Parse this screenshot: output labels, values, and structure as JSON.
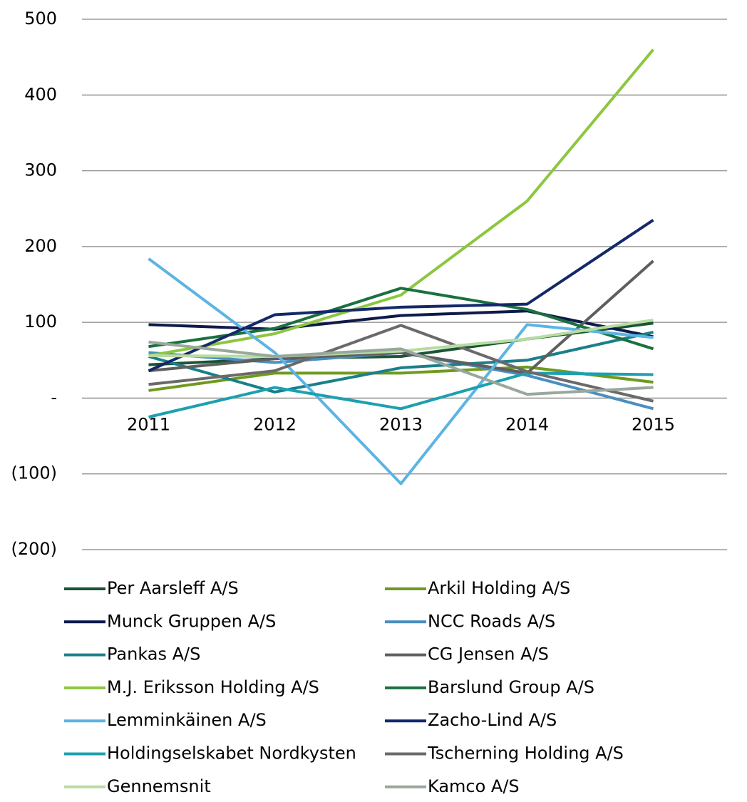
{
  "chart_data": {
    "type": "line",
    "categories": [
      "2011",
      "2012",
      "2013",
      "2014",
      "2015"
    ],
    "ylim": [
      -200,
      500
    ],
    "yticks": [
      {
        "value": -200,
        "label": "(200)"
      },
      {
        "value": -100,
        "label": "(100)"
      },
      {
        "value": 0,
        "label": "-"
      },
      100,
      200,
      300,
      400,
      500
    ],
    "grid": true,
    "legend": "bottom",
    "series": [
      {
        "name": "Per Aarsleff A/S",
        "color": "#1b5436",
        "values": [
          44,
          52,
          55,
          78,
          99
        ]
      },
      {
        "name": "Arkil Holding A/S",
        "color": "#6f9a1f",
        "values": [
          10,
          33,
          33,
          41,
          21
        ]
      },
      {
        "name": "Munck Gruppen A/S",
        "color": "#0e1a4a",
        "values": [
          97,
          91,
          109,
          115,
          81
        ]
      },
      {
        "name": "NCC Roads A/S",
        "color": "#4a8fc0",
        "values": [
          60,
          47,
          60,
          30,
          -14
        ]
      },
      {
        "name": "Pankas A/S",
        "color": "#1a7f8a",
        "values": [
          55,
          8,
          40,
          50,
          87
        ]
      },
      {
        "name": "CG Jensen A/S",
        "color": "#5f5f5f",
        "values": [
          36,
          52,
          60,
          33,
          181
        ]
      },
      {
        "name": "M.J. Eriksson Holding A/S",
        "color": "#8dc63f",
        "values": [
          56,
          85,
          136,
          260,
          460
        ]
      },
      {
        "name": "Barslund Group A/S",
        "color": "#1a7040",
        "values": [
          68,
          92,
          145,
          117,
          65
        ]
      },
      {
        "name": "Lemminkäinen A/S",
        "color": "#5cb4e4",
        "values": [
          184,
          60,
          -113,
          97,
          80
        ]
      },
      {
        "name": "Zacho-Lind A/S",
        "color": "#13296b",
        "values": [
          36,
          110,
          120,
          124,
          235
        ]
      },
      {
        "name": "Holdingselskabet Nordkysten",
        "color": "#1ca0b0",
        "values": [
          -25,
          14,
          -14,
          33,
          31
        ]
      },
      {
        "name": "Tscherning Holding A/S",
        "color": "#6a6a6a",
        "values": [
          18,
          36,
          96,
          35,
          -4
        ]
      },
      {
        "name": "Gennemsnit",
        "color": "#b8dca0",
        "values": [
          56,
          55,
          62,
          78,
          103
        ]
      },
      {
        "name": "Kamco A/S",
        "color": "#98a89c",
        "values": [
          74,
          55,
          65,
          5,
          14
        ]
      }
    ]
  }
}
